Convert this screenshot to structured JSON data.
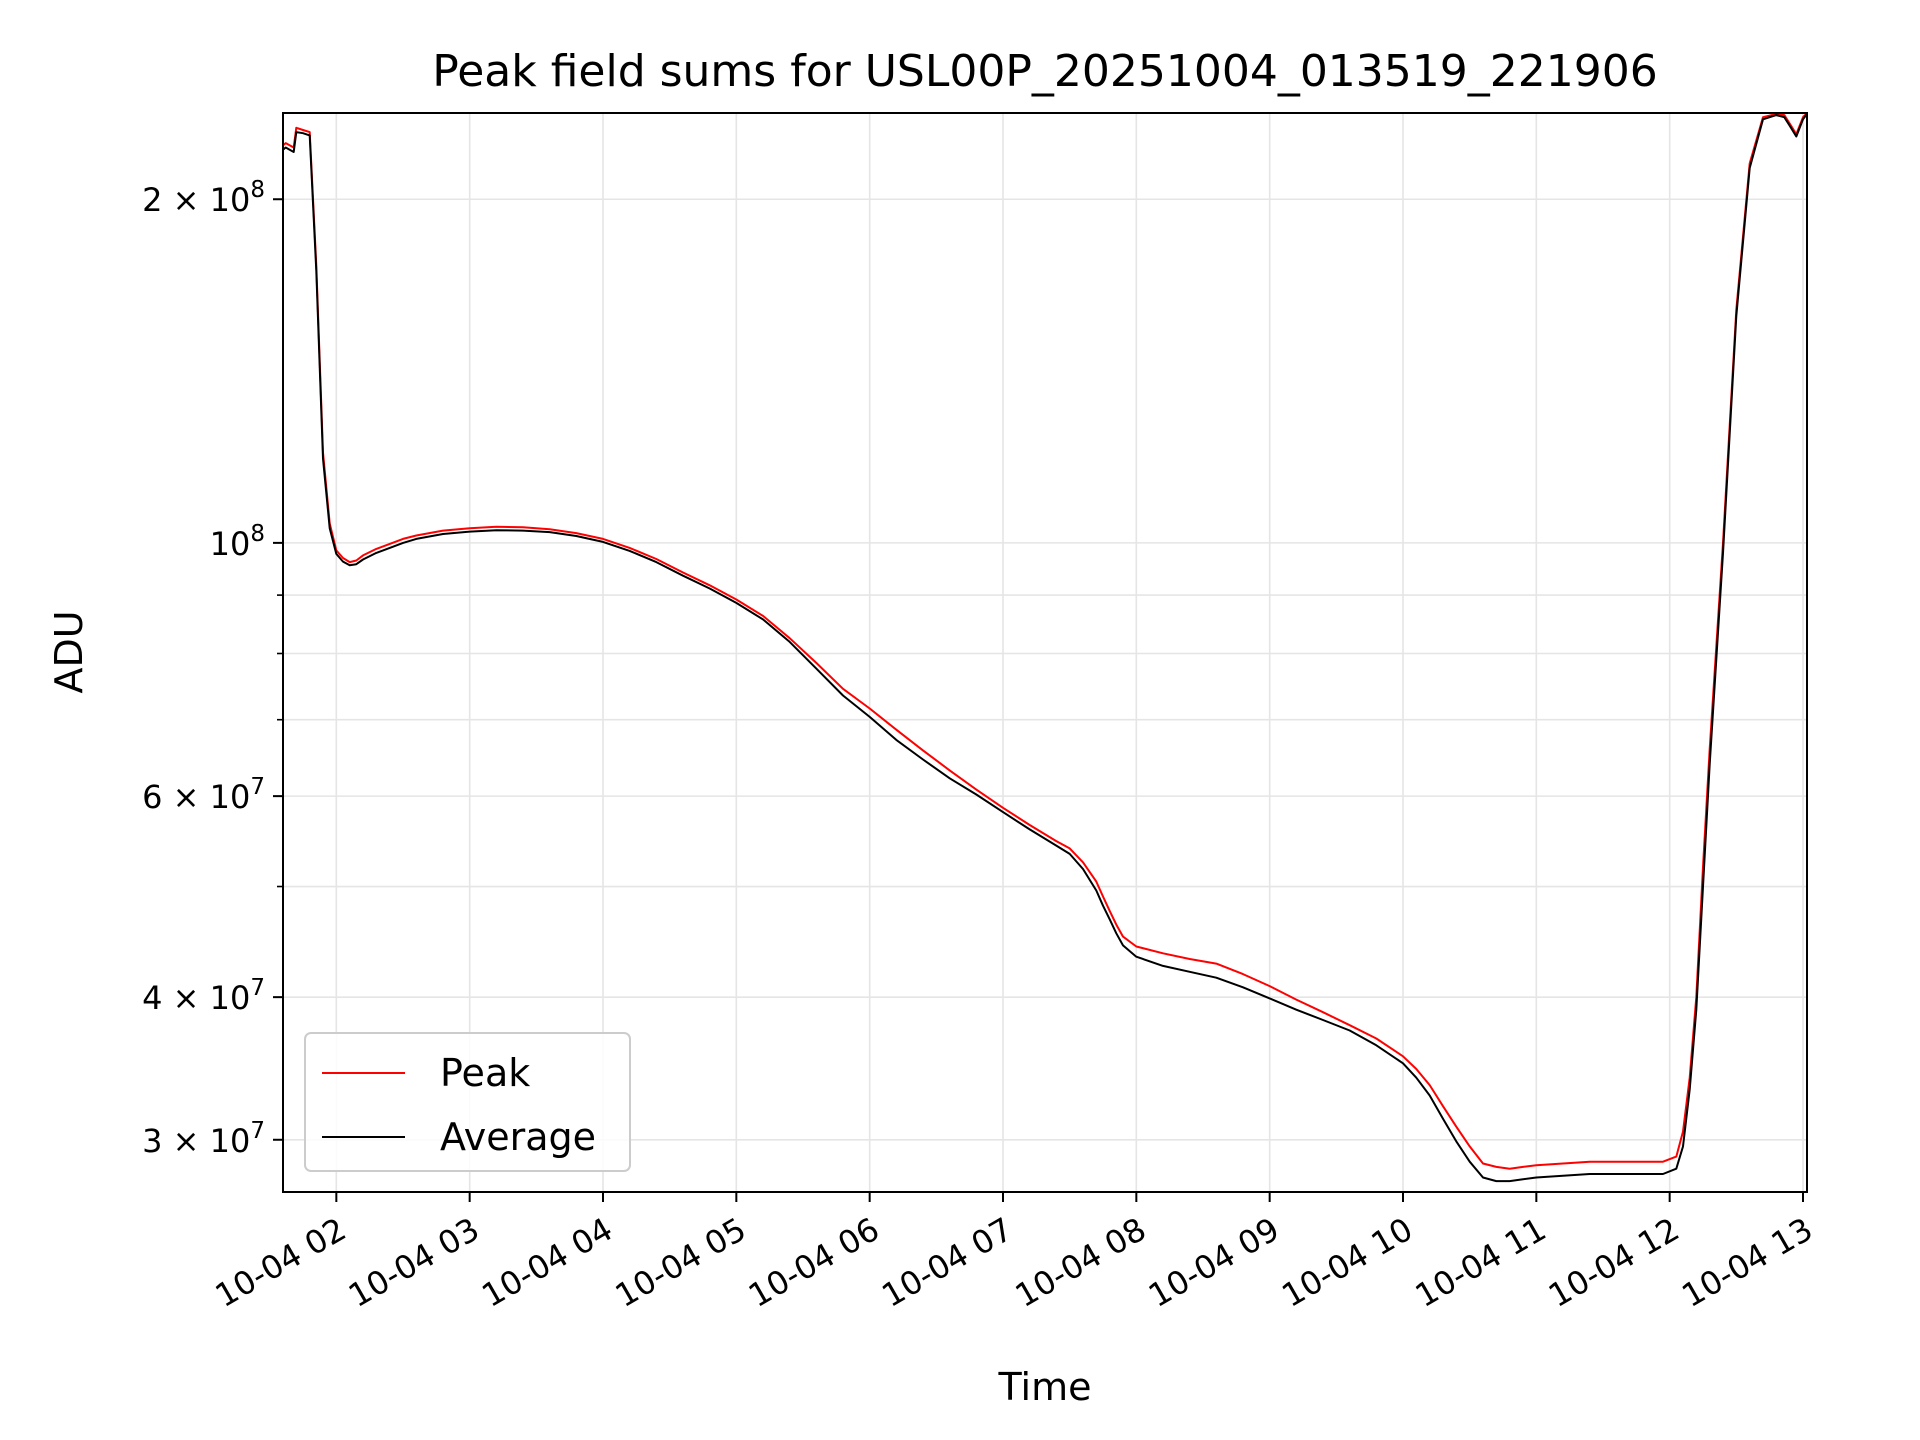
{
  "chart_data": {
    "type": "line",
    "title": "Peak field sums for USL00P_20251004_013519_221906",
    "xlabel": "Time",
    "ylabel": "ADU",
    "yscale": "log",
    "xlim": [
      1.6,
      13.03
    ],
    "ylim": [
      27000000,
      238000000
    ],
    "x_ticks": [
      {
        "value": 2,
        "label": "10-04 02"
      },
      {
        "value": 3,
        "label": "10-04 03"
      },
      {
        "value": 4,
        "label": "10-04 04"
      },
      {
        "value": 5,
        "label": "10-04 05"
      },
      {
        "value": 6,
        "label": "10-04 06"
      },
      {
        "value": 7,
        "label": "10-04 07"
      },
      {
        "value": 8,
        "label": "10-04 08"
      },
      {
        "value": 9,
        "label": "10-04 09"
      },
      {
        "value": 10,
        "label": "10-04 10"
      },
      {
        "value": 11,
        "label": "10-04 11"
      },
      {
        "value": 12,
        "label": "10-04 12"
      },
      {
        "value": 13,
        "label": "10-04 13"
      }
    ],
    "y_major_ticks": [
      {
        "value": 30000000,
        "mantissa": "3",
        "exponent": "7"
      },
      {
        "value": 40000000,
        "mantissa": "4",
        "exponent": "7"
      },
      {
        "value": 60000000,
        "mantissa": "6",
        "exponent": "7"
      },
      {
        "value": 100000000,
        "mantissa": "",
        "exponent": "8"
      },
      {
        "value": 200000000,
        "mantissa": "2",
        "exponent": "8"
      }
    ],
    "y_minor_ticks": [
      50000000,
      70000000,
      80000000,
      90000000
    ],
    "grid": true,
    "legend_position": "lower-left",
    "series": [
      {
        "name": "Peak",
        "color": "#ff0000",
        "x": [
          1.6,
          1.62,
          1.68,
          1.7,
          1.75,
          1.8,
          1.85,
          1.9,
          1.95,
          2.0,
          2.05,
          2.1,
          2.15,
          2.2,
          2.3,
          2.4,
          2.5,
          2.6,
          2.8,
          3.0,
          3.2,
          3.4,
          3.6,
          3.8,
          4.0,
          4.2,
          4.4,
          4.6,
          4.8,
          5.0,
          5.2,
          5.4,
          5.6,
          5.8,
          6.0,
          6.2,
          6.4,
          6.6,
          6.8,
          7.0,
          7.2,
          7.4,
          7.5,
          7.6,
          7.7,
          7.75,
          7.8,
          7.85,
          7.9,
          8.0,
          8.2,
          8.4,
          8.6,
          8.8,
          9.0,
          9.2,
          9.4,
          9.6,
          9.8,
          10.0,
          10.1,
          10.2,
          10.3,
          10.4,
          10.5,
          10.6,
          10.7,
          10.8,
          10.9,
          11.0,
          11.2,
          11.4,
          11.6,
          11.8,
          11.95,
          12.05,
          12.1,
          12.15,
          12.2,
          12.25,
          12.3,
          12.4,
          12.5,
          12.6,
          12.7,
          12.8,
          12.86,
          12.9,
          12.95,
          13.0,
          13.03
        ],
        "y": [
          223000000,
          224000000,
          222000000,
          231000000,
          230000000,
          229000000,
          175000000,
          120000000,
          104000000,
          98500000,
          97000000,
          96200000,
          96500000,
          97500000,
          98800000,
          99800000,
          100800000,
          101500000,
          102500000,
          103000000,
          103300000,
          103200000,
          102800000,
          102000000,
          100800000,
          99000000,
          96800000,
          94200000,
          91800000,
          89200000,
          86300000,
          82500000,
          78500000,
          74500000,
          71600000,
          68600000,
          65800000,
          63200000,
          60800000,
          58600000,
          56600000,
          54800000,
          54000000,
          52500000,
          50500000,
          49000000,
          47600000,
          46300000,
          45200000,
          44300000,
          43700000,
          43200000,
          42800000,
          41900000,
          40900000,
          39800000,
          38800000,
          37800000,
          36800000,
          35500000,
          34600000,
          33500000,
          32100000,
          30800000,
          29600000,
          28600000,
          28400000,
          28300000,
          28400000,
          28500000,
          28600000,
          28700000,
          28700000,
          28700000,
          28700000,
          29000000,
          30500000,
          34000000,
          40000000,
          52000000,
          66000000,
          100000000,
          160000000,
          215000000,
          236000000,
          237500000,
          237000000,
          233000000,
          228000000,
          236000000,
          238000000
        ]
      },
      {
        "name": "Average",
        "color": "#000000",
        "x": [
          1.6,
          1.62,
          1.68,
          1.7,
          1.75,
          1.8,
          1.85,
          1.9,
          1.95,
          2.0,
          2.05,
          2.1,
          2.15,
          2.2,
          2.3,
          2.4,
          2.5,
          2.6,
          2.8,
          3.0,
          3.2,
          3.4,
          3.6,
          3.8,
          4.0,
          4.2,
          4.4,
          4.6,
          4.8,
          5.0,
          5.2,
          5.4,
          5.6,
          5.8,
          6.0,
          6.2,
          6.4,
          6.6,
          6.8,
          7.0,
          7.2,
          7.4,
          7.5,
          7.6,
          7.7,
          7.75,
          7.8,
          7.85,
          7.9,
          8.0,
          8.2,
          8.4,
          8.6,
          8.8,
          9.0,
          9.2,
          9.4,
          9.6,
          9.8,
          10.0,
          10.1,
          10.2,
          10.3,
          10.4,
          10.5,
          10.6,
          10.7,
          10.8,
          10.9,
          11.0,
          11.2,
          11.4,
          11.6,
          11.8,
          11.95,
          12.05,
          12.1,
          12.15,
          12.2,
          12.25,
          12.3,
          12.4,
          12.5,
          12.6,
          12.7,
          12.8,
          12.86,
          12.9,
          12.95,
          13.0,
          13.03
        ],
        "y": [
          221000000,
          222000000,
          220000000,
          229000000,
          228500000,
          227500000,
          173000000,
          118500000,
          103000000,
          97800000,
          96300000,
          95600000,
          95800000,
          96700000,
          98000000,
          99000000,
          100000000,
          100800000,
          101800000,
          102300000,
          102600000,
          102500000,
          102200000,
          101400000,
          100200000,
          98400000,
          96200000,
          93600000,
          91200000,
          88600000,
          85700000,
          81900000,
          77600000,
          73500000,
          70400000,
          67200000,
          64600000,
          62200000,
          60200000,
          58100000,
          56100000,
          54300000,
          53400000,
          51800000,
          49600000,
          48100000,
          46800000,
          45500000,
          44400000,
          43400000,
          42600000,
          42100000,
          41600000,
          40800000,
          39900000,
          39000000,
          38200000,
          37400000,
          36300000,
          35000000,
          34000000,
          32800000,
          31300000,
          29900000,
          28700000,
          27800000,
          27600000,
          27600000,
          27700000,
          27800000,
          27900000,
          28000000,
          28000000,
          28000000,
          28000000,
          28300000,
          29600000,
          33200000,
          39000000,
          50000000,
          64000000,
          98000000,
          158000000,
          213000000,
          235000000,
          237000000,
          236000000,
          232000000,
          227000000,
          235000000,
          237500000
        ]
      }
    ]
  }
}
